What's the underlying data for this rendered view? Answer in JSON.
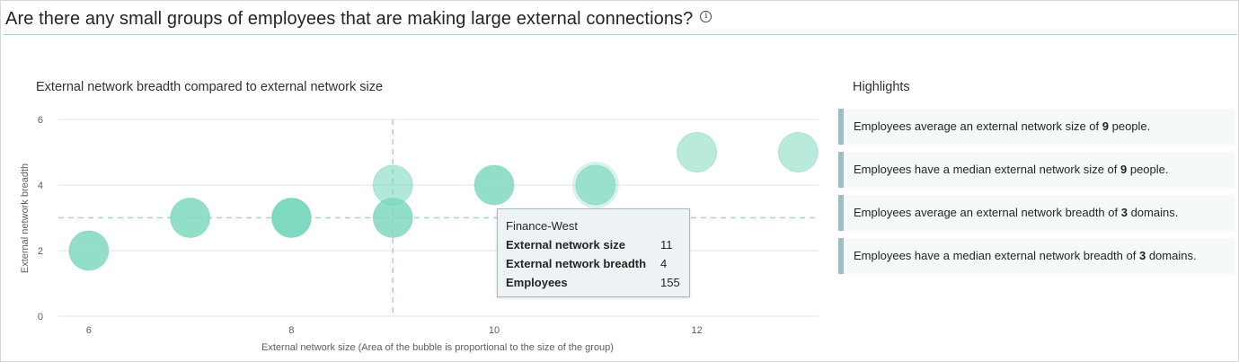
{
  "header": {
    "title": "Are there any small groups of employees that are making large external connections?",
    "info_icon": "info-circle-icon"
  },
  "chart_data": {
    "type": "scatter",
    "title": "External network breadth compared to external network size",
    "xlabel": "External network size (Area of the bubble is proportional to the size of the group)",
    "ylabel": "External network breadth",
    "xlim": [
      5.7,
      13.2
    ],
    "ylim": [
      0,
      6
    ],
    "x_ticks": [
      6,
      8,
      10,
      12
    ],
    "y_ticks": [
      0,
      2,
      4,
      6
    ],
    "grid": "horizontal",
    "reference_lines": {
      "x": 9,
      "y": 3
    },
    "colors": {
      "bubble": "#7fd8c0",
      "reference": "#a9cfdc",
      "grid": "#e3e3e3"
    },
    "points": [
      {
        "x": 6,
        "y": 2,
        "opacity": 0.85
      },
      {
        "x": 7,
        "y": 3,
        "opacity": 0.85
      },
      {
        "x": 8,
        "y": 3,
        "opacity": 1.0
      },
      {
        "x": 9,
        "y": 3,
        "opacity": 0.85
      },
      {
        "x": 9,
        "y": 4,
        "opacity": 0.6
      },
      {
        "x": 10,
        "y": 4,
        "opacity": 0.85
      },
      {
        "x": 11,
        "y": 4,
        "opacity": 0.7,
        "highlighted": true
      },
      {
        "x": 12,
        "y": 5,
        "opacity": 0.55
      },
      {
        "x": 13,
        "y": 5,
        "opacity": 0.55
      }
    ]
  },
  "tooltip": {
    "title": "Finance-West",
    "rows": [
      {
        "label": "External network size",
        "value": "11"
      },
      {
        "label": "External network breadth",
        "value": "4"
      },
      {
        "label": "Employees",
        "value": "155"
      }
    ]
  },
  "highlights": {
    "title": "Highlights",
    "items": [
      {
        "before": "Employees average an external network size of ",
        "value": "9",
        "after": " people."
      },
      {
        "before": "Employees have a median external network size of ",
        "value": "9",
        "after": " people."
      },
      {
        "before": "Employees average an external network breadth of ",
        "value": "3",
        "after": " domains."
      },
      {
        "before": "Employees have a median external network breadth of ",
        "value": "3",
        "after": " domains."
      }
    ]
  }
}
